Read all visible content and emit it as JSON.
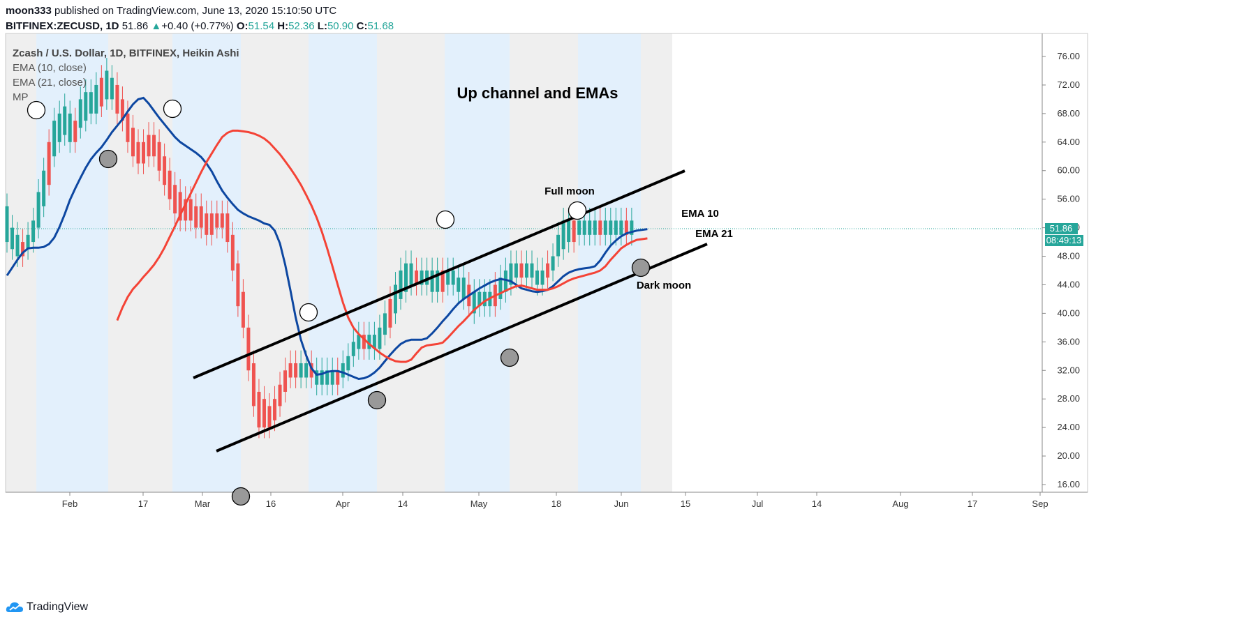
{
  "header": {
    "user": "moon333",
    "published": "published on TradingView.com, June 13, 2020 15:10:50 UTC",
    "symbol": "BITFINEX:ZECUSD, 1D",
    "last": "51.86",
    "change": "+0.40 (+0.77%)",
    "o_label": "O:",
    "o": "51.54",
    "h_label": "H:",
    "h": "52.36",
    "l_label": "L:",
    "l": "50.90",
    "c_label": "C:",
    "c": "51.68"
  },
  "legend": {
    "title": "Zcash / U.S. Dollar, 1D, BITFINEX, Heikin Ashi",
    "ema10": "EMA (10, close)",
    "ema21": "EMA (21, close)",
    "mp": "MP"
  },
  "footer": {
    "brand": "TradingView"
  },
  "colors": {
    "up": "#26a69a",
    "down": "#ef5350",
    "ema10": "#0d47a1",
    "ema21": "#f44336",
    "band_blue": "#e3f0fc",
    "band_gray": "#efefef",
    "price_tag": "#26a69a"
  },
  "chart_data": {
    "type": "candlestick",
    "title": "Up channel and EMAs",
    "y_axis_labels": [
      "76.00",
      "72.00",
      "68.00",
      "64.00",
      "60.00",
      "56.00",
      "52.00",
      "48.00",
      "44.00",
      "40.00",
      "36.00",
      "32.00",
      "28.00",
      "24.00",
      "20.00",
      "16.00"
    ],
    "ylim": [
      15,
      78
    ],
    "x_axis_labels": [
      "Feb",
      "17",
      "Mar",
      "16",
      "Apr",
      "14",
      "May",
      "18",
      "Jun",
      "15",
      "Jul",
      "14",
      "Aug",
      "17",
      "Sep"
    ],
    "last_price_tag": "51.86",
    "countdown_tag": "08:49:13",
    "annotations": [
      "Full moon",
      "EMA 10",
      "EMA 21",
      "Dark moon"
    ],
    "channel_upper": [
      [
        41,
        31
      ],
      [
        139,
        60
      ]
    ],
    "channel_lower": [
      [
        44,
        21
      ],
      [
        142,
        49
      ]
    ],
    "ema10": [
      45.3,
      46.4,
      47.5,
      48.5,
      49.1,
      49.2,
      49.2,
      49.3,
      49.7,
      50.6,
      52.1,
      53.9,
      55.9,
      57.5,
      59.0,
      60.4,
      61.6,
      62.5,
      63.3,
      64.3,
      65.4,
      66.3,
      67.2,
      68.3,
      69.3,
      70.0,
      70.2,
      69.4,
      68.4,
      67.4,
      66.5,
      65.6,
      64.7,
      64.0,
      63.5,
      63.0,
      62.5,
      61.9,
      61.0,
      59.9,
      58.5,
      57.2,
      56.2,
      55.3,
      54.5,
      54.0,
      53.6,
      53.3,
      53.0,
      52.6,
      52.4,
      51.6,
      49.8,
      46.8,
      43.2,
      39.4,
      36.3,
      34.1,
      32.3,
      31.4,
      31.5,
      31.8,
      31.9,
      31.9,
      31.7,
      31.4,
      31.1,
      30.8,
      30.9,
      31.2,
      31.7,
      32.4,
      33.3,
      34.2,
      35.0,
      35.7,
      36.1,
      36.3,
      36.3,
      36.3,
      36.5,
      37.2,
      38.0,
      38.9,
      39.7,
      40.6,
      41.4,
      42.0,
      42.5,
      43.0,
      43.5,
      43.9,
      44.3,
      44.6,
      44.8,
      44.7,
      44.5,
      44.0,
      43.5,
      43.3,
      43.1,
      43.0,
      43.1,
      43.3,
      43.8,
      44.5,
      45.2,
      45.7,
      46.0,
      46.2,
      46.3,
      46.4,
      46.6,
      47.4,
      48.5,
      49.5,
      50.2,
      50.8,
      51.2,
      51.4,
      51.6,
      51.7,
      51.8
    ],
    "ema21": [
      39.0,
      40.8,
      42.3,
      43.4,
      44.2,
      45.1,
      45.9,
      46.8,
      47.9,
      49.2,
      50.7,
      52.2,
      53.8,
      55.3,
      56.8,
      58.3,
      59.8,
      61.2,
      62.4,
      63.6,
      64.7,
      65.3,
      65.6,
      65.6,
      65.5,
      65.4,
      65.2,
      64.9,
      64.5,
      63.9,
      63.1,
      62.3,
      61.3,
      60.3,
      59.2,
      58.0,
      56.6,
      55.1,
      53.4,
      51.4,
      49.1,
      46.6,
      44.0,
      41.5,
      39.4,
      38.0,
      37.1,
      36.4,
      35.7,
      35.1,
      34.5,
      34.0,
      33.6,
      33.3,
      33.2,
      33.2,
      33.5,
      34.4,
      35.2,
      35.5,
      35.6,
      35.7,
      35.9,
      36.6,
      37.4,
      38.2,
      38.9,
      39.7,
      40.5,
      41.1,
      41.7,
      42.1,
      42.5,
      42.8,
      43.2,
      43.5,
      43.8,
      43.9,
      43.7,
      43.5,
      43.3,
      43.3,
      43.3,
      43.5,
      43.8,
      44.2,
      44.6,
      44.9,
      45.1,
      45.3,
      45.5,
      45.7,
      46.0,
      46.6,
      47.5,
      48.3,
      49.1,
      49.6,
      50.0,
      50.3,
      50.4,
      50.5
    ],
    "candles": [
      [
        50,
        55
      ],
      [
        49,
        52
      ],
      [
        48,
        51
      ],
      [
        48,
        50
      ],
      [
        49,
        51
      ],
      [
        50,
        53
      ],
      [
        52,
        57
      ],
      [
        55,
        60
      ],
      [
        58,
        64
      ],
      [
        62,
        67
      ],
      [
        64,
        68
      ],
      [
        65,
        69
      ],
      [
        64,
        68
      ],
      [
        64,
        67
      ],
      [
        66,
        70
      ],
      [
        67,
        71
      ],
      [
        68,
        71
      ],
      [
        68,
        72
      ],
      [
        69,
        73
      ],
      [
        70,
        74
      ],
      [
        70,
        73
      ],
      [
        68,
        72
      ],
      [
        67,
        70
      ],
      [
        64,
        68
      ],
      [
        62,
        66
      ],
      [
        61,
        64
      ],
      [
        61,
        64
      ],
      [
        62,
        65
      ],
      [
        62,
        65
      ],
      [
        60,
        64
      ],
      [
        58,
        62
      ],
      [
        56,
        60
      ],
      [
        54,
        58
      ],
      [
        53,
        57
      ],
      [
        53,
        56
      ],
      [
        53,
        56
      ],
      [
        52,
        55
      ],
      [
        52,
        55
      ],
      [
        51,
        54
      ],
      [
        51,
        54
      ],
      [
        52,
        54
      ],
      [
        52,
        54
      ],
      [
        50,
        54
      ],
      [
        46,
        51
      ],
      [
        41,
        47
      ],
      [
        38,
        43
      ],
      [
        32,
        38
      ],
      [
        27,
        33
      ],
      [
        24,
        29
      ],
      [
        24,
        28
      ],
      [
        24,
        27
      ],
      [
        25,
        28
      ],
      [
        27,
        30
      ],
      [
        29,
        32
      ],
      [
        31,
        33
      ],
      [
        31,
        33
      ],
      [
        31,
        33
      ],
      [
        31,
        33
      ],
      [
        31,
        33
      ],
      [
        30,
        32
      ],
      [
        30,
        32
      ],
      [
        30,
        32
      ],
      [
        30,
        32
      ],
      [
        30,
        32
      ],
      [
        31,
        33
      ],
      [
        32,
        34
      ],
      [
        34,
        36
      ],
      [
        35,
        37
      ],
      [
        35,
        37
      ],
      [
        35,
        37
      ],
      [
        35,
        37
      ],
      [
        35,
        38
      ],
      [
        37,
        40
      ],
      [
        38,
        42
      ],
      [
        40,
        44
      ],
      [
        42,
        46
      ],
      [
        43,
        47
      ],
      [
        44,
        47
      ],
      [
        44,
        46
      ],
      [
        44,
        46
      ],
      [
        44,
        46
      ],
      [
        43,
        46
      ],
      [
        43,
        46
      ],
      [
        43,
        46
      ],
      [
        44,
        46
      ],
      [
        44,
        46
      ],
      [
        43,
        45
      ],
      [
        42,
        45
      ],
      [
        41,
        44
      ],
      [
        40,
        43
      ],
      [
        41,
        43
      ],
      [
        41,
        43
      ],
      [
        41,
        43
      ],
      [
        41,
        44
      ],
      [
        42,
        45
      ],
      [
        43,
        46
      ],
      [
        44,
        47
      ],
      [
        45,
        47
      ],
      [
        45,
        47
      ],
      [
        45,
        47
      ],
      [
        45,
        47
      ],
      [
        44,
        46
      ],
      [
        44,
        46
      ],
      [
        45,
        47
      ],
      [
        46,
        48
      ],
      [
        48,
        51
      ],
      [
        49,
        53
      ],
      [
        50,
        53
      ],
      [
        50,
        53
      ],
      [
        51,
        53
      ],
      [
        51,
        53
      ],
      [
        51,
        53
      ],
      [
        51,
        53
      ],
      [
        51,
        53
      ],
      [
        51,
        53
      ],
      [
        51,
        53
      ],
      [
        51,
        53
      ],
      [
        51,
        53
      ],
      [
        51,
        53
      ],
      [
        51,
        53
      ]
    ]
  }
}
